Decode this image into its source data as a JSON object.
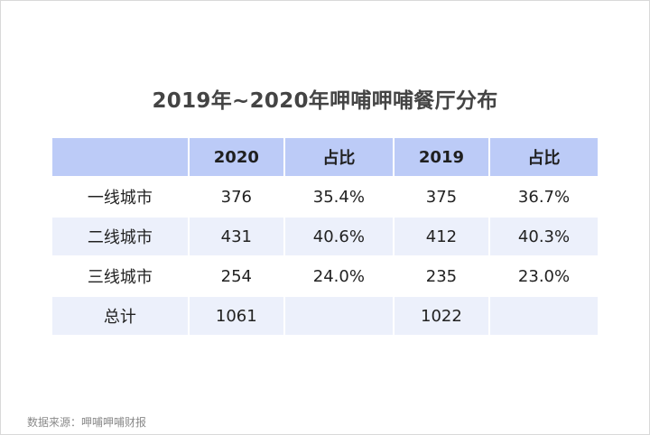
{
  "title": "2019年~2020年呷哺呷哺餐厅分布",
  "table": {
    "headers": [
      "",
      "2020",
      "占比",
      "2019",
      "占比"
    ],
    "rows": [
      [
        "一线城市",
        "376",
        "35.4%",
        "375",
        "36.7%"
      ],
      [
        "二线城市",
        "431",
        "40.6%",
        "412",
        "40.3%"
      ],
      [
        "三线城市",
        "254",
        "24.0%",
        "235",
        "23.0%"
      ],
      [
        "总计",
        "1061",
        "",
        "1022",
        ""
      ]
    ]
  },
  "source": "数据来源：呷哺呷哺财报",
  "colors": {
    "header_bg": "#bccbf7",
    "stripe_bg": "#ecf0fb",
    "title_text": "#444444",
    "source_text": "#8a8a8a"
  }
}
